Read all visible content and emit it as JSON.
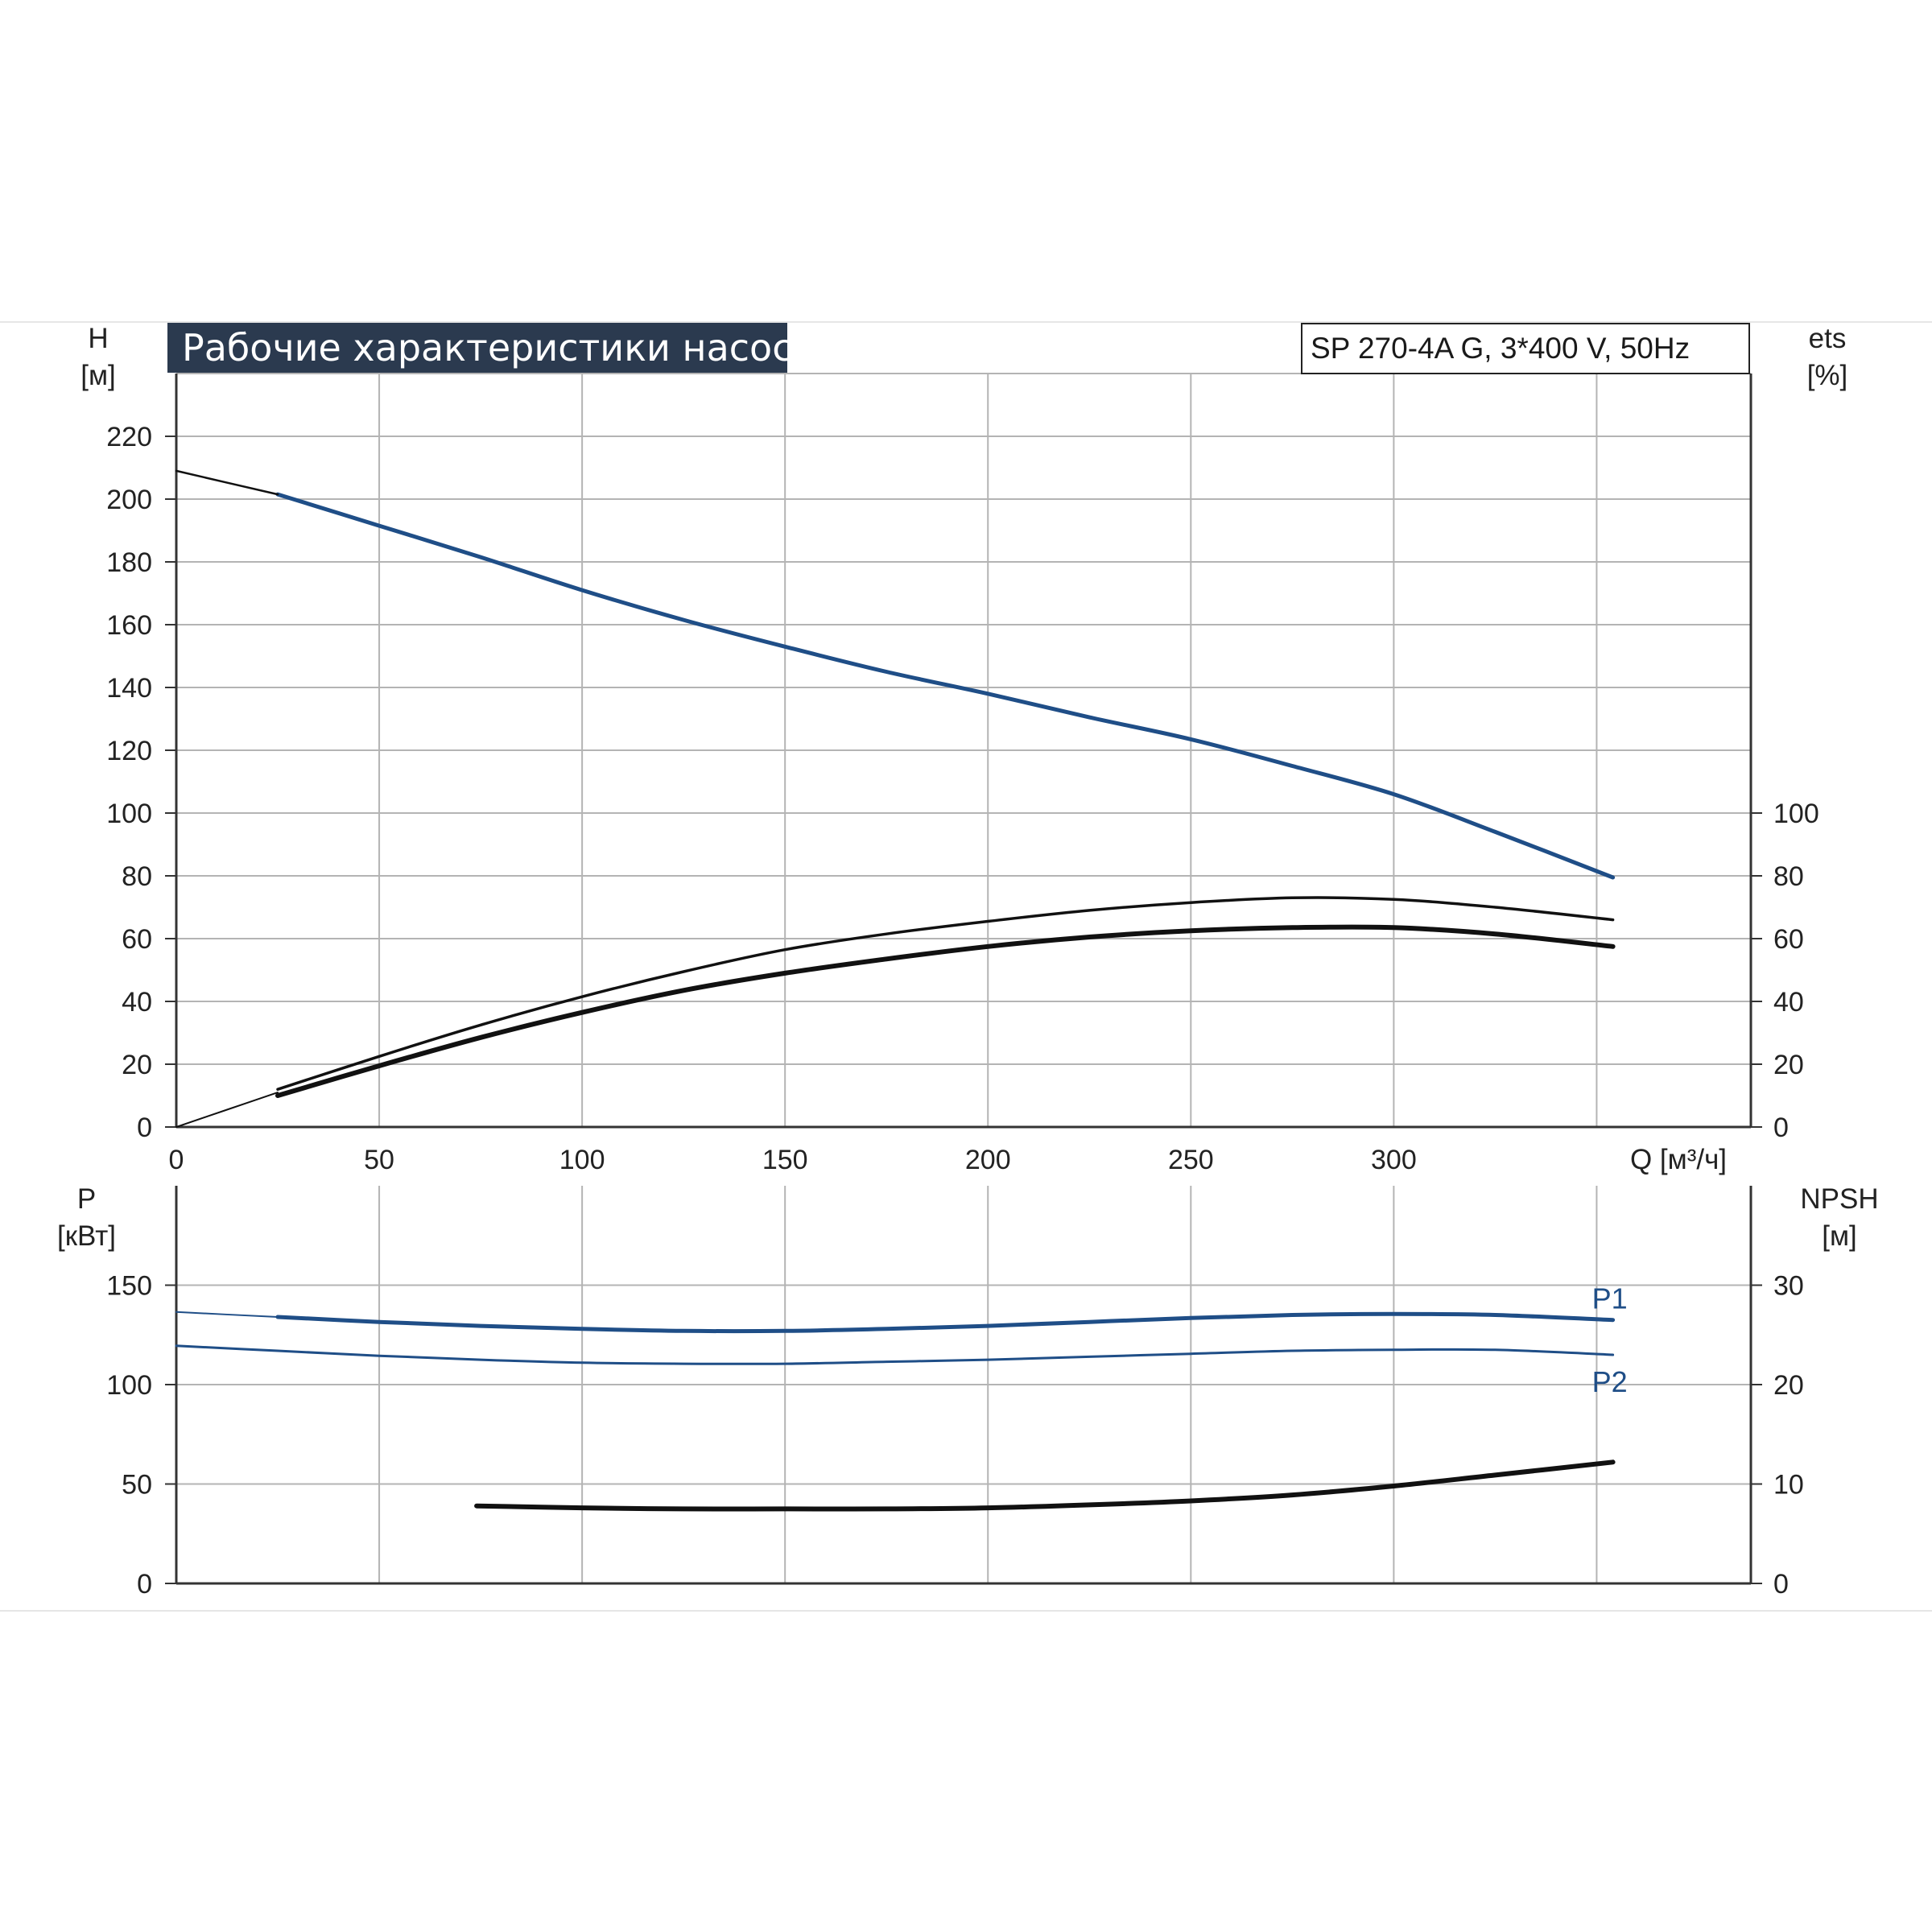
{
  "header": {
    "title": "Рабочие характеристики насоса",
    "model": "SP 270-4A G, 3*400 V, 50Hz"
  },
  "axes": {
    "top_left_unit_a": "H",
    "top_left_unit_b": "[м]",
    "top_right_unit_a": "ets",
    "top_right_unit_b": "[%]",
    "x_label": "Q [м³/ч]",
    "bottom_left_unit_a": "P",
    "bottom_left_unit_b": "[кВт]",
    "bottom_right_unit_a": "NPSH",
    "bottom_right_unit_b": "[м]"
  },
  "colors": {
    "blue": "#1f4e87",
    "black": "#111111",
    "grid": "#b4b4b4",
    "axis": "#333333"
  },
  "chart_data": [
    {
      "type": "line",
      "name": "top-panel",
      "xlim": [
        0,
        388
      ],
      "x_ticks": [
        0,
        50,
        100,
        150,
        200,
        250,
        300
      ],
      "ylim_left": [
        0,
        240
      ],
      "y_ticks_left": [
        0,
        20,
        40,
        60,
        80,
        100,
        120,
        140,
        160,
        180,
        200,
        220
      ],
      "ylim_right": [
        0,
        240
      ],
      "y_ticks_right": [
        0,
        20,
        40,
        60,
        80,
        100
      ],
      "grid": true,
      "series": [
        {
          "axis": "left",
          "color": "blue",
          "weight": 5,
          "x": [
            25,
            50,
            75,
            100,
            125,
            150,
            175,
            200,
            225,
            250,
            275,
            300,
            325,
            354
          ],
          "y": [
            201.5,
            191.5,
            181.5,
            171,
            161.5,
            153,
            145,
            138,
            130.5,
            123.5,
            115,
            106,
            94,
            79.5
          ]
        },
        {
          "axis": "left",
          "color": "black",
          "weight": 2.5,
          "x": [
            0,
            25
          ],
          "y": [
            209,
            201.5
          ]
        },
        {
          "axis": "right",
          "color": "black",
          "weight": 3.5,
          "x": [
            25,
            50,
            75,
            100,
            125,
            150,
            175,
            200,
            225,
            250,
            275,
            300,
            325,
            354
          ],
          "y": [
            12,
            22.5,
            32.5,
            41.5,
            49.5,
            56.5,
            61.5,
            65.5,
            69,
            71.5,
            73,
            72.5,
            70,
            66
          ]
        },
        {
          "axis": "right",
          "color": "black",
          "weight": 6,
          "x": [
            25,
            50,
            75,
            100,
            125,
            150,
            175,
            200,
            225,
            250,
            275,
            300,
            325,
            354
          ],
          "y": [
            10,
            19.5,
            28.5,
            36.5,
            43.5,
            49,
            53.5,
            57.5,
            60.5,
            62.5,
            63.5,
            63.5,
            61.5,
            57.5
          ]
        },
        {
          "axis": "right",
          "color": "black",
          "weight": 2,
          "x": [
            0,
            12.5,
            25
          ],
          "y": [
            0,
            5.5,
            11
          ]
        }
      ]
    },
    {
      "type": "line",
      "name": "bottom-panel",
      "xlim": [
        0,
        388
      ],
      "ylim_left": [
        0,
        200
      ],
      "y_ticks_left": [
        0,
        50,
        100,
        150
      ],
      "ylim_right": [
        0,
        40
      ],
      "y_ticks_right": [
        0,
        10,
        20,
        30
      ],
      "grid": true,
      "series": [
        {
          "name": "P1",
          "axis": "left",
          "color": "blue",
          "weight": 5,
          "x": [
            25,
            50,
            75,
            100,
            125,
            150,
            175,
            200,
            225,
            250,
            275,
            300,
            325,
            354
          ],
          "y": [
            134,
            131.5,
            129.5,
            128,
            127,
            127,
            128,
            129.5,
            131.5,
            133.5,
            135,
            135.5,
            135,
            132.5
          ]
        },
        {
          "axis": "left",
          "color": "blue",
          "weight": 2,
          "x": [
            0,
            25
          ],
          "y": [
            136.5,
            134
          ]
        },
        {
          "name": "P2",
          "axis": "left",
          "color": "blue",
          "weight": 3,
          "x": [
            0,
            25,
            50,
            75,
            100,
            125,
            150,
            175,
            200,
            225,
            250,
            275,
            300,
            325,
            354
          ],
          "y": [
            119.5,
            117,
            114.5,
            112.5,
            111,
            110.5,
            110.5,
            111.5,
            112.5,
            114,
            115.5,
            117,
            117.5,
            117.5,
            115
          ]
        },
        {
          "axis": "right",
          "color": "black",
          "weight": 6,
          "x": [
            74,
            100,
            125,
            150,
            175,
            200,
            225,
            250,
            275,
            300,
            325,
            354
          ],
          "y": [
            7.8,
            7.6,
            7.5,
            7.5,
            7.5,
            7.6,
            7.9,
            8.3,
            8.9,
            9.8,
            10.9,
            12.2
          ]
        }
      ]
    }
  ]
}
